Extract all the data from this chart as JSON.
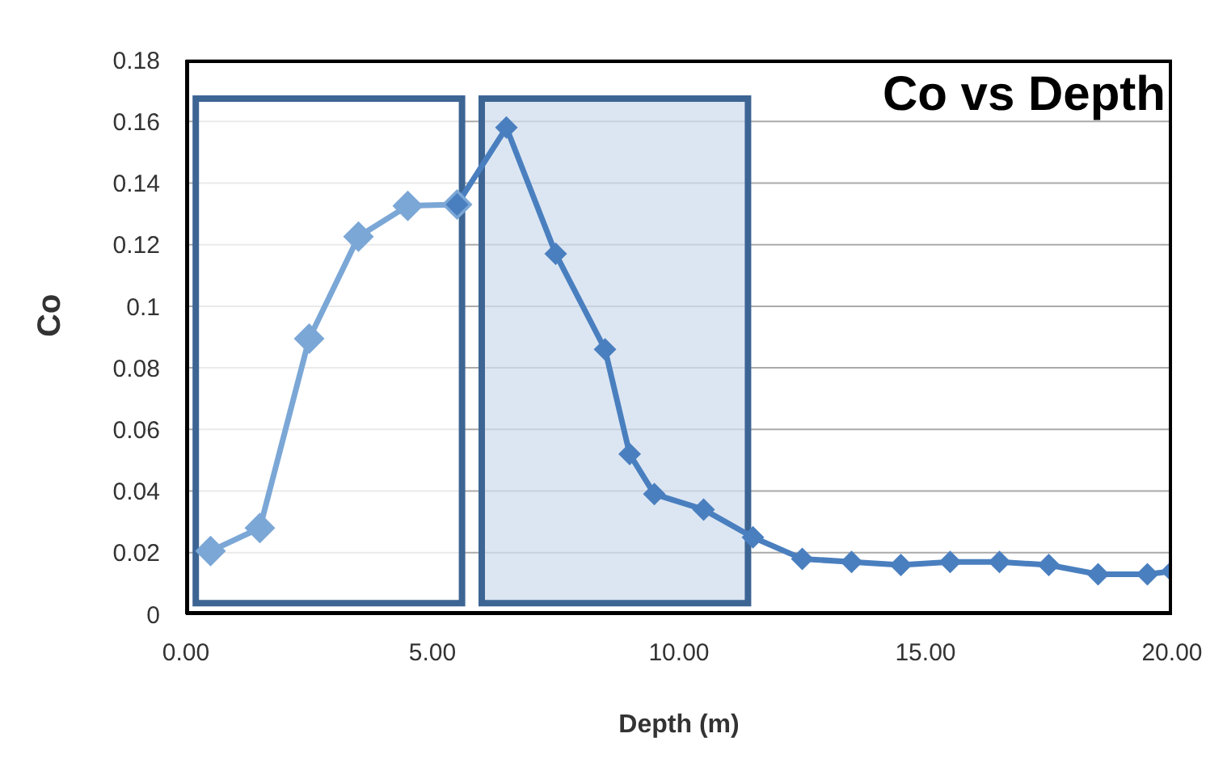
{
  "chart_data": {
    "type": "line",
    "title": "Co vs Depth",
    "xlabel": "Depth (m)",
    "ylabel": "Co",
    "series": [
      {
        "color": "#7ba7d6",
        "x": [
          0.5,
          1.5,
          2.5,
          3.5,
          4.5,
          5.5
        ],
        "values": [
          0.0205,
          0.028,
          0.0895,
          0.1226,
          0.1326,
          0.133
        ]
      },
      {
        "color": "#4a7fbf",
        "x": [
          5.5,
          6.5,
          7.5,
          8.5,
          9,
          9.5,
          10.5,
          11.5,
          12.5,
          13.5,
          14.5,
          15.5,
          16.5,
          17.5,
          18.5,
          19.5,
          20
        ],
        "values": [
          0.133,
          0.158,
          0.117,
          0.086,
          0.052,
          0.039,
          0.034,
          0.025,
          0.018,
          0.017,
          0.016,
          0.017,
          0.017,
          0.016,
          0.013,
          0.013,
          0.014
        ]
      }
    ],
    "xlim": [
      0,
      20
    ],
    "xticks": [
      {
        "value": 0,
        "label": "0.00"
      },
      {
        "value": 5,
        "label": "5.00"
      },
      {
        "value": 10,
        "label": "10.00"
      },
      {
        "value": 15,
        "label": "15.00"
      },
      {
        "value": 20,
        "label": "20.00"
      }
    ],
    "ylim": [
      0,
      0.18
    ],
    "yticks": [
      0,
      0.02,
      0.04,
      0.06,
      0.08,
      0.1,
      0.12,
      0.14,
      0.16,
      0.18
    ],
    "bands": [
      {
        "axis": "x",
        "from": 0.2,
        "to": 5.6,
        "color": "#ffffff"
      },
      {
        "axis": "x",
        "from": 6,
        "to": 11.4,
        "color": "#d0deee"
      }
    ],
    "grid": "y",
    "legend": false,
    "marker": "diamond",
    "line_style": "solid"
  }
}
